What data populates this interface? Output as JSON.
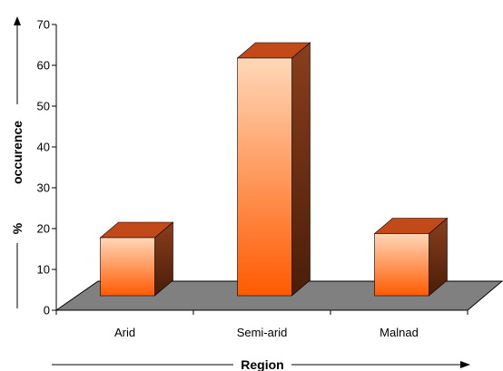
{
  "chart_data": {
    "type": "bar",
    "title": "",
    "xlabel": "Region",
    "ylabel": "% occurence",
    "ylabel_prefix": "%",
    "ylabel_main": "occurence",
    "categories": [
      "Arid",
      "Semi-arid",
      "Malnad"
    ],
    "values": [
      20,
      64,
      21
    ],
    "ylim": [
      0,
      70
    ],
    "yticks": [
      "0",
      "10",
      "20",
      "30",
      "40",
      "50",
      "60",
      "70"
    ],
    "grid": false,
    "legend": "none",
    "style": "3d"
  },
  "colors": {
    "floor": "#808080",
    "bar_front_top": "#ffd7b8",
    "bar_front_bottom": "#ff5a00",
    "bar_top": "#c24a18",
    "bar_side_top": "#8a3e1c",
    "bar_side_bottom": "#4a1e08",
    "axis": "#000000"
  }
}
